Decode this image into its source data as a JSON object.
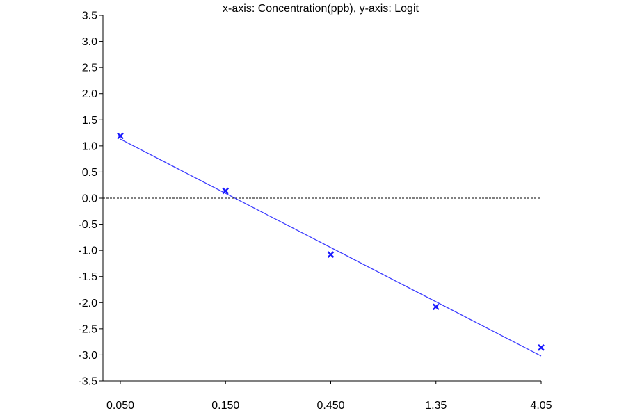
{
  "chart_data": {
    "type": "scatter",
    "title": "x-axis: Concentration(ppb), y-axis: Logit",
    "xlabel": "",
    "ylabel": "",
    "x_scale": "log",
    "x_ticks": [
      "0.050",
      "0.150",
      "0.450",
      "1.35",
      "4.05"
    ],
    "x_tick_values": [
      0.05,
      0.15,
      0.45,
      1.35,
      4.05
    ],
    "ylim": [
      -3.5,
      3.5
    ],
    "y_ticks": [
      "3.5",
      "3.0",
      "2.5",
      "2.0",
      "1.5",
      "1.0",
      "0.5",
      "0.0",
      "-0.5",
      "-1.0",
      "-1.5",
      "-2.0",
      "-2.5",
      "-3.0",
      "-3.5"
    ],
    "y_tick_values": [
      3.5,
      3.0,
      2.5,
      2.0,
      1.5,
      1.0,
      0.5,
      0.0,
      -0.5,
      -1.0,
      -1.5,
      -2.0,
      -2.5,
      -3.0,
      -3.5
    ],
    "grid": false,
    "series": [
      {
        "marker": "x",
        "color": "#1a1aff",
        "x": [
          0.05,
          0.15,
          0.45,
          1.35,
          4.05
        ],
        "y": [
          1.19,
          0.14,
          -1.08,
          -2.08,
          -2.86
        ]
      }
    ],
    "fit_line": {
      "color": "#3b3bff",
      "x": [
        0.05,
        4.05
      ],
      "y": [
        1.13,
        -3.02
      ]
    },
    "reference_line": {
      "y": 0.0,
      "style": "dashed",
      "color": "#000000"
    }
  }
}
